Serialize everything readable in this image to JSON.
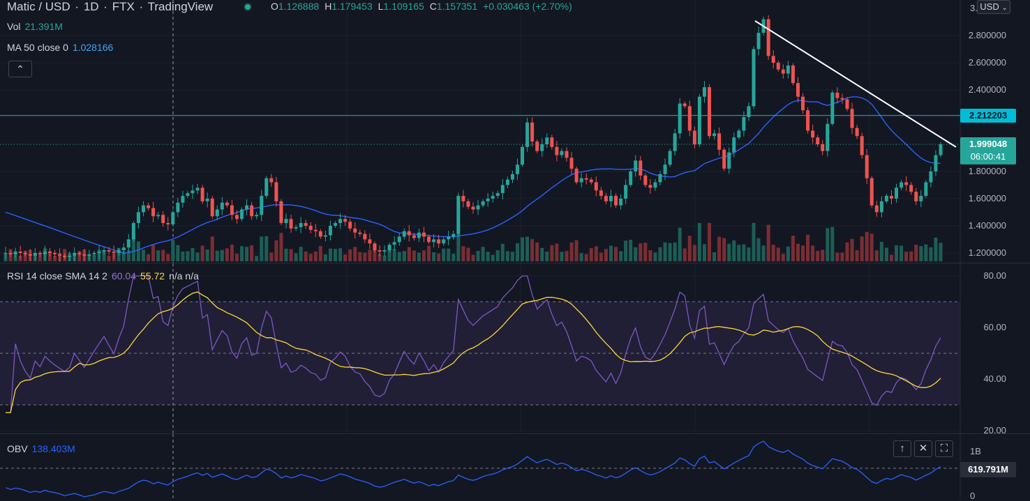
{
  "header": {
    "symbol": "Matic / USD",
    "interval": "1D",
    "exchange": "FTX",
    "provider": "TradingView",
    "status_color": "#26a69a",
    "ohlc": {
      "o_label": "O",
      "o": "1.126888",
      "h_label": "H",
      "h": "1.179453",
      "l_label": "L",
      "l": "1.109165",
      "c_label": "C",
      "c": "1.157351",
      "change": "+0.030463 (+2.70%)"
    }
  },
  "currency_button": {
    "label": "USD",
    "icon": "chevron-down-icon"
  },
  "legends": {
    "vol": {
      "label": "Vol",
      "value": "21.391M"
    },
    "ma": {
      "label": "MA 50 close 0",
      "value": "1.028166"
    },
    "rsi": {
      "label": "RSI 14 close SMA 14 2",
      "value1": "60.04",
      "value2": "55.72",
      "value3": "n/a n/a"
    },
    "obv": {
      "label": "OBV",
      "value": "138.403M"
    }
  },
  "collapse_button": {
    "icon": "chevron-up-icon"
  },
  "price_axis": {
    "ticks": [
      "2.800000",
      "2.600000",
      "2.400000",
      "1.800000",
      "1.600000",
      "1.400000",
      "1.200000"
    ],
    "top_cut": "3."
  },
  "tags": {
    "horizontal_line": "2.212203",
    "last_price": "1.999048",
    "countdown": "06:00:41"
  },
  "rsi_axis": {
    "ticks": [
      "80.00",
      "60.00",
      "40.00",
      "20.00"
    ]
  },
  "obv_axis": {
    "ticks": [
      "1B",
      "0"
    ],
    "tag": "619.791M"
  },
  "pane_buttons": [
    "arrow-up-icon",
    "close-icon",
    "maximize-icon"
  ],
  "colors": {
    "up": "#26a69a",
    "down": "#ef5350",
    "ma": "#2962ff",
    "hline": "#00bcd4",
    "rsi": "#7e57c2",
    "rsi_sma": "#fdd835",
    "obv": "#2962ff",
    "trendline": "#ffffff"
  },
  "chart_data": {
    "type": "candlestick",
    "ylim": [
      1.15,
      3.0
    ],
    "horizontal_line": 2.212203,
    "last_price": 1.999048,
    "close": [
      1.2,
      1.19,
      1.21,
      1.2,
      1.19,
      1.18,
      1.2,
      1.19,
      1.21,
      1.2,
      1.19,
      1.18,
      1.17,
      1.18,
      1.2,
      1.19,
      1.18,
      1.19,
      1.2,
      1.21,
      1.22,
      1.21,
      1.2,
      1.22,
      1.24,
      1.3,
      1.42,
      1.5,
      1.55,
      1.53,
      1.47,
      1.48,
      1.42,
      1.41,
      1.5,
      1.57,
      1.62,
      1.64,
      1.66,
      1.68,
      1.58,
      1.6,
      1.47,
      1.52,
      1.57,
      1.55,
      1.48,
      1.45,
      1.52,
      1.55,
      1.47,
      1.48,
      1.62,
      1.75,
      1.72,
      1.58,
      1.42,
      1.45,
      1.38,
      1.39,
      1.42,
      1.4,
      1.37,
      1.36,
      1.32,
      1.33,
      1.4,
      1.42,
      1.45,
      1.43,
      1.38,
      1.35,
      1.34,
      1.3,
      1.27,
      1.22,
      1.21,
      1.22,
      1.26,
      1.28,
      1.32,
      1.36,
      1.33,
      1.31,
      1.35,
      1.32,
      1.28,
      1.3,
      1.27,
      1.3,
      1.32,
      1.34,
      1.62,
      1.58,
      1.54,
      1.52,
      1.55,
      1.58,
      1.6,
      1.62,
      1.64,
      1.7,
      1.74,
      1.78,
      1.85,
      1.98,
      2.16,
      2.02,
      1.95,
      2.0,
      2.05,
      1.98,
      1.92,
      1.95,
      1.9,
      1.82,
      1.72,
      1.75,
      1.74,
      1.72,
      1.66,
      1.62,
      1.58,
      1.62,
      1.55,
      1.6,
      1.7,
      1.8,
      1.88,
      1.77,
      1.7,
      1.68,
      1.72,
      1.78,
      1.85,
      1.95,
      2.08,
      2.3,
      2.28,
      2.1,
      2.0,
      2.35,
      2.42,
      2.06,
      2.08,
      1.96,
      1.82,
      1.94,
      2.05,
      2.1,
      2.2,
      2.28,
      2.7,
      2.82,
      2.92,
      2.65,
      2.6,
      2.55,
      2.52,
      2.58,
      2.45,
      2.35,
      2.25,
      2.1,
      2.05,
      2.0,
      1.95,
      2.15,
      2.38,
      2.34,
      2.33,
      2.26,
      2.12,
      2.06,
      1.92,
      1.75,
      1.55,
      1.5,
      1.58,
      1.62,
      1.6,
      1.68,
      1.72,
      1.7,
      1.65,
      1.58,
      1.62,
      1.72,
      1.8,
      1.92,
      2.0
    ]
  }
}
